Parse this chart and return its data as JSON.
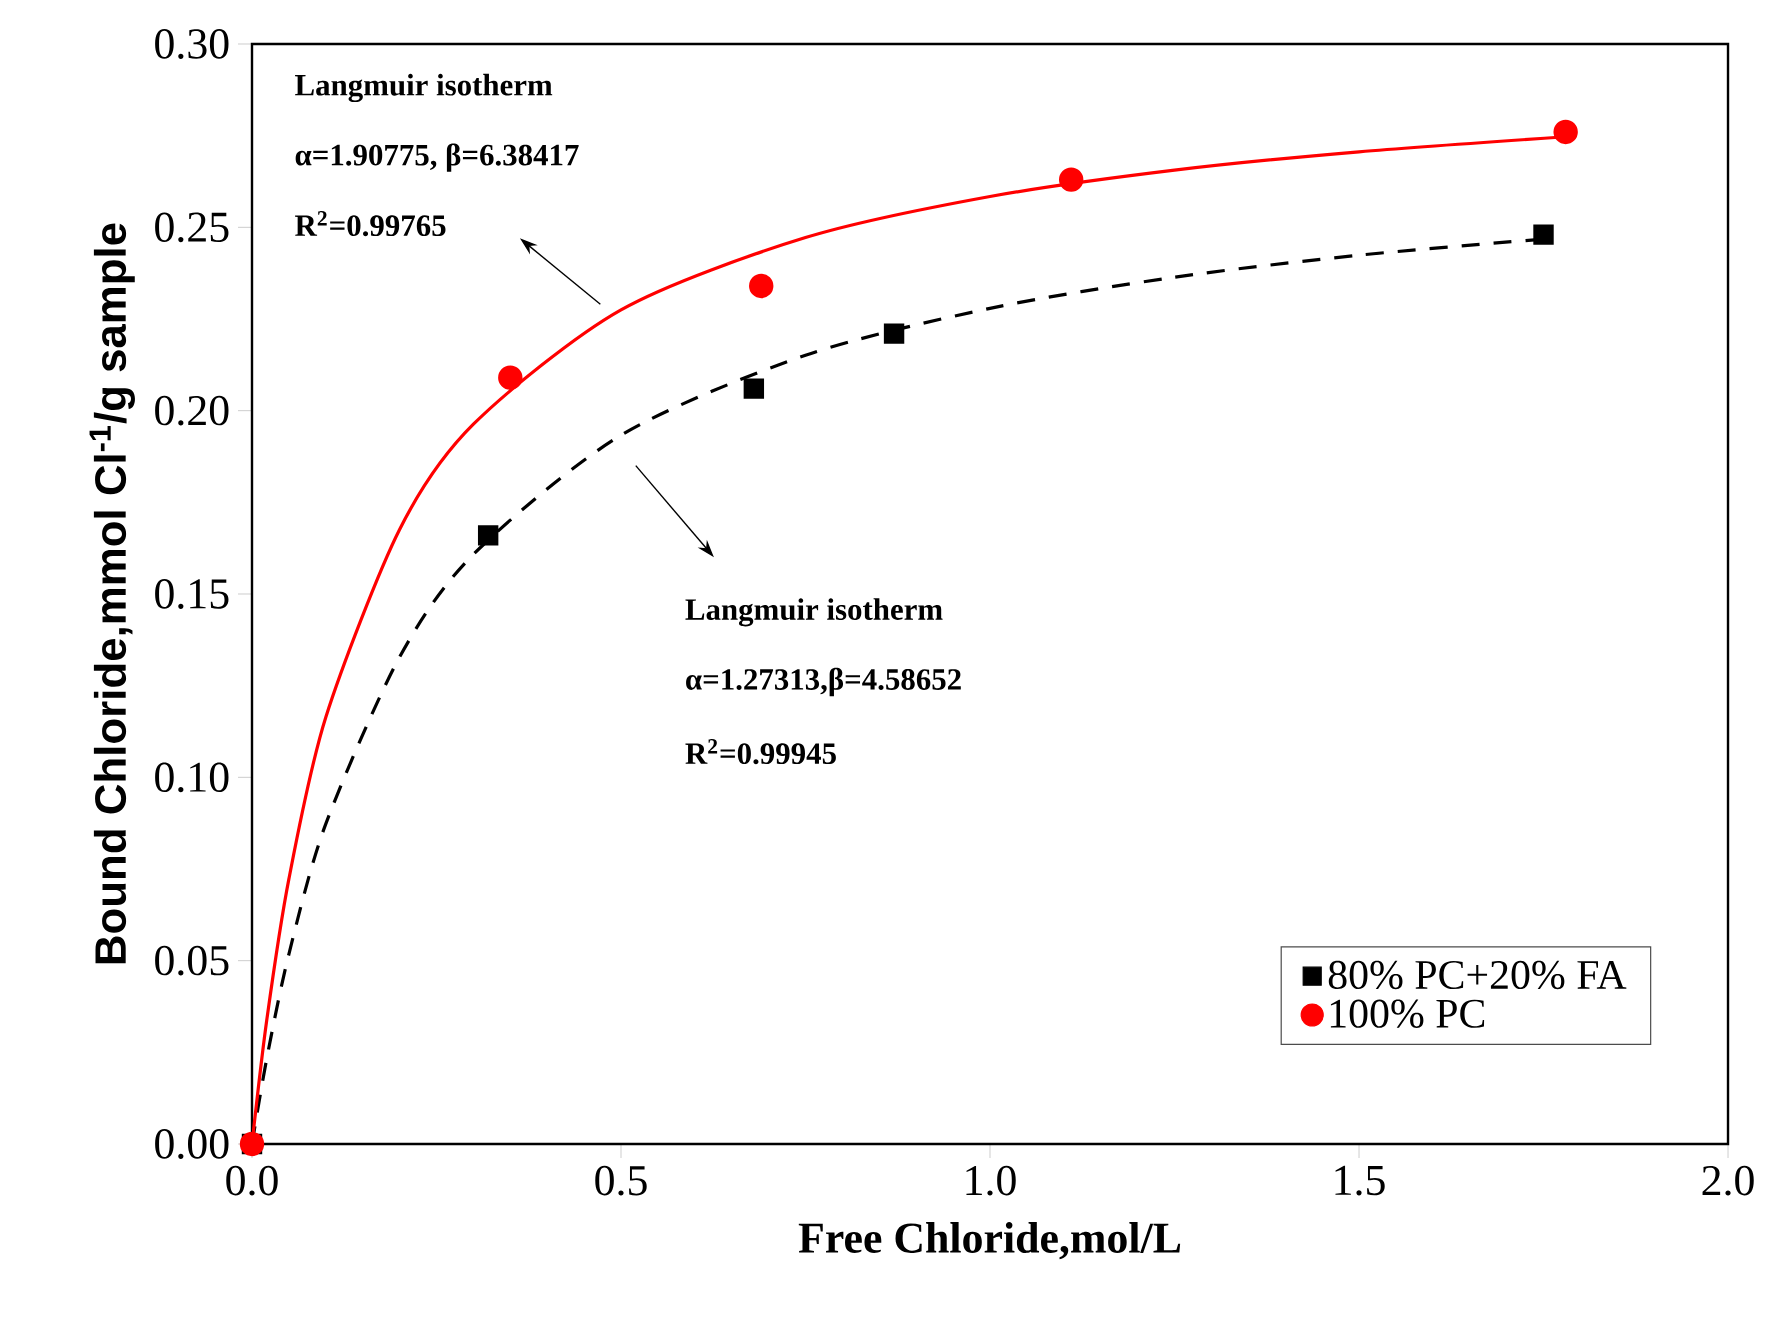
{
  "chart_data": {
    "type": "scatter",
    "xlabel": "Free Chloride,mol/L",
    "ylabel": "Bound Chloride,mmol Cl$^{-1}$/g sample",
    "xlim": [
      0,
      2.0
    ],
    "ylim": [
      0,
      0.3
    ],
    "xticks": [
      {
        "value": 0,
        "label": "0.0"
      },
      {
        "value": 0.5,
        "label": "0.5"
      },
      {
        "value": 1.0,
        "label": "1.0"
      },
      {
        "value": 1.5,
        "label": "1.5"
      },
      {
        "value": 2.0,
        "label": "2.0"
      }
    ],
    "yticks": [
      {
        "value": 0,
        "label": "0.00"
      },
      {
        "value": 0.05,
        "label": "0.05"
      },
      {
        "value": 0.1,
        "label": "0.10"
      },
      {
        "value": 0.15,
        "label": "0.15"
      },
      {
        "value": 0.2,
        "label": "0.20"
      },
      {
        "value": 0.25,
        "label": "0.25"
      },
      {
        "value": 0.3,
        "label": "0.30"
      }
    ],
    "legend": "bottom right",
    "grid": false,
    "series": [
      {
        "name": "80% PC+20% FA",
        "marker": "square",
        "color": "#000000",
        "x": [
          0,
          0.32,
          0.68,
          0.87,
          1.75
        ],
        "values": [
          0,
          0.166,
          0.206,
          0.221,
          0.248
        ]
      },
      {
        "name": "100% PC",
        "marker": "circle",
        "color": "#ff0000",
        "x": [
          0,
          0.35,
          0.69,
          1.11,
          1.78
        ],
        "values": [
          0,
          0.209,
          0.234,
          0.263,
          0.276
        ]
      },
      {
        "type": "line",
        "line_style": "dashed",
        "marker": "none",
        "color": "#000000",
        "x": [
          0,
          0.02,
          0.05,
          0.1,
          0.2,
          0.3,
          0.5,
          0.75,
          1.0,
          1.25,
          1.5,
          1.75
        ],
        "values": [
          0,
          0.0233,
          0.0518,
          0.0873,
          0.1328,
          0.1608,
          0.1933,
          0.2151,
          0.2279,
          0.2364,
          0.2424,
          0.2468
        ]
      },
      {
        "type": "line",
        "line_style": "solid",
        "marker": "none",
        "color": "#ff0000",
        "x": [
          0,
          0.02,
          0.05,
          0.1,
          0.2,
          0.3,
          0.5,
          0.75,
          1.0,
          1.25,
          1.5,
          1.78
        ],
        "values": [
          0,
          0.0338,
          0.0723,
          0.1164,
          0.1676,
          0.1963,
          0.2275,
          0.2472,
          0.2584,
          0.2656,
          0.2706,
          0.2747
        ]
      }
    ],
    "annotations": [
      "Langmuir isotherm",
      "α=1.90775, β=6.38417",
      "R$^{2}$=0.99765",
      "Langmuir isotherm",
      "α=1.27313,β=4.58652",
      "R$^{2}$=0.99945"
    ]
  }
}
